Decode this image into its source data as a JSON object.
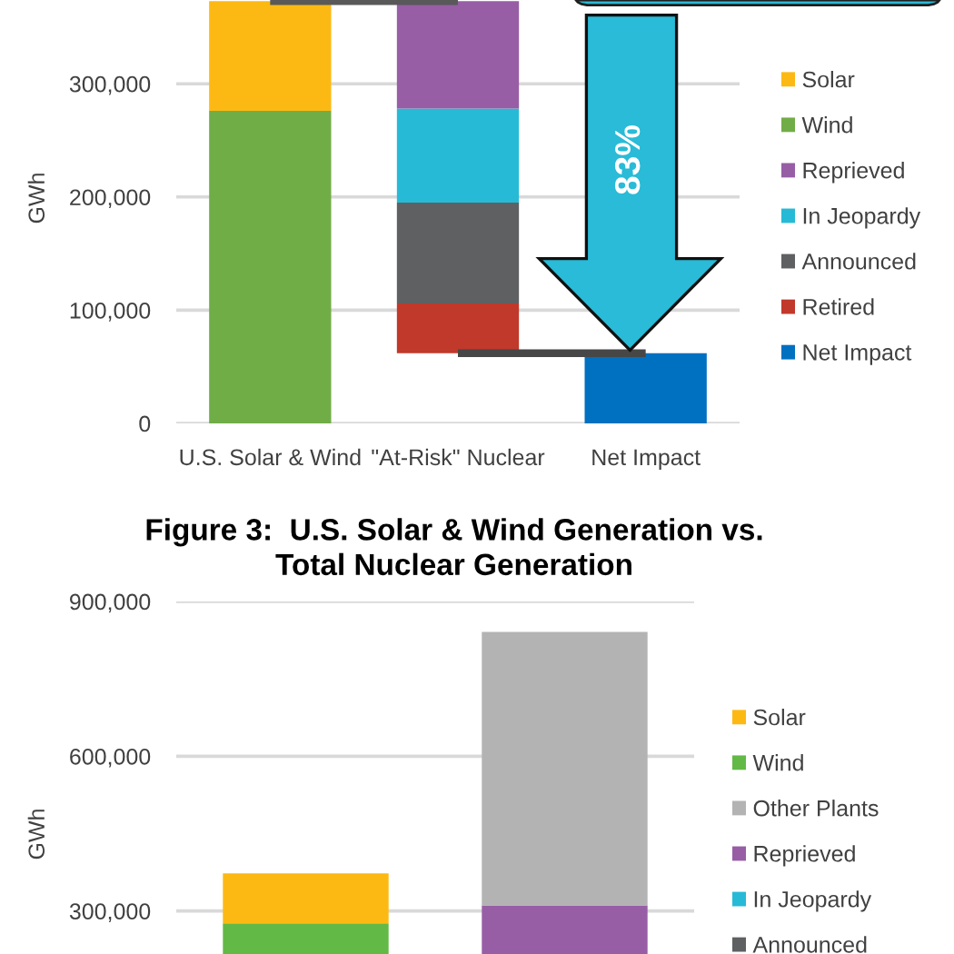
{
  "chart_data": [
    {
      "type": "bar",
      "stacked": true,
      "ylabel": "GWh",
      "categories": [
        "U.S. Solar & Wind",
        "\"At-Risk\" Nuclear",
        "Net Impact"
      ],
      "series": [
        {
          "name": "Net Impact",
          "color": "#0070c0",
          "values": [
            null,
            null,
            62000
          ]
        },
        {
          "name": "Retired",
          "color": "#c0392b",
          "base": [
            null,
            62000,
            null
          ],
          "values": [
            null,
            44000,
            null
          ]
        },
        {
          "name": "Announced",
          "color": "#5f6062",
          "values": [
            null,
            89000,
            null
          ]
        },
        {
          "name": "In Jeopardy",
          "color": "#27bad6",
          "values": [
            null,
            83000,
            null
          ]
        },
        {
          "name": "Reprieved",
          "color": "#975ea5",
          "values": [
            null,
            95000,
            null
          ]
        },
        {
          "name": "Wind",
          "color": "#70ad47",
          "values": [
            276000,
            null,
            null
          ]
        },
        {
          "name": "Solar",
          "color": "#fdb913",
          "values": [
            97000,
            null,
            null
          ]
        },
        {
          "type": "line",
          "color": "#595959",
          "values": [
            373000,
            373000,
            null
          ]
        },
        {
          "type": "line",
          "color": "#474747",
          "values": [
            null,
            62000,
            62000
          ]
        }
      ],
      "ylim": [
        0,
        374000
      ],
      "yticks": [
        0,
        {
          "value": 100000,
          "label": "100,000"
        },
        {
          "value": 200000,
          "label": "200,000"
        },
        {
          "value": 300000,
          "label": "300,000"
        }
      ],
      "grid": "y",
      "legend": "right",
      "annotations": [
        "83%"
      ]
    },
    {
      "type": "bar",
      "stacked": true,
      "title": "Figure 3:  U.S. Solar & Wind Generation vs.\nTotal Nuclear Generation",
      "ylabel": "GWh",
      "categories": [
        null,
        null
      ],
      "tick_labels": "y",
      "series": [
        {
          "name": "Announced",
          "color": "#5f6062",
          "values": [
            null,
            null
          ]
        },
        {
          "name": "In Jeopardy",
          "color": "#27bad6",
          "values": [
            null,
            null
          ]
        },
        {
          "name": "Reprieved",
          "color": "#975ea5",
          "base": [
            null,
            216000
          ],
          "values": [
            null,
            95000
          ]
        },
        {
          "name": "Other Plants",
          "color": "#b3b3b3",
          "values": [
            null,
            530000
          ]
        },
        {
          "name": "Wind",
          "color": "#63b946",
          "values": [
            276000,
            null
          ]
        },
        {
          "name": "Solar",
          "color": "#fdb913",
          "values": [
            97000,
            null
          ]
        }
      ],
      "ylim": [
        0,
        900000
      ],
      "yticks": [
        {
          "value": 300000,
          "label": "300,000"
        },
        {
          "value": 600000,
          "label": "600,000"
        },
        {
          "value": 900000,
          "label": "900,000"
        }
      ],
      "grid": "y",
      "legend": "right"
    }
  ]
}
